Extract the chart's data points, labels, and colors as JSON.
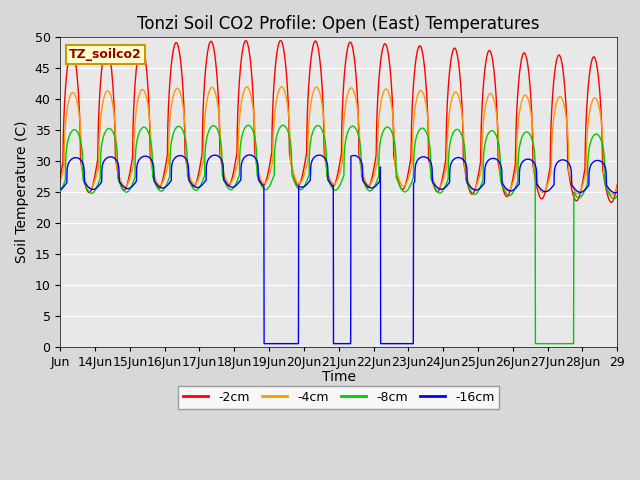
{
  "title": "Tonzi Soil CO2 Profile: Open (East) Temperatures",
  "ylabel": "Soil Temperature (C)",
  "xlabel": "Time",
  "ylim": [
    0,
    50
  ],
  "yticks": [
    0,
    5,
    10,
    15,
    20,
    25,
    30,
    35,
    40,
    45,
    50
  ],
  "legend_label": "TZ_soilco2",
  "series": [
    {
      "label": "-2cm",
      "color": "#ff0000"
    },
    {
      "label": "-4cm",
      "color": "#ff9900"
    },
    {
      "label": "-8cm",
      "color": "#00cc00"
    },
    {
      "label": "-16cm",
      "color": "#0000ff"
    }
  ],
  "bg_color": "#e8e8e8",
  "grid_color": "#ffffff",
  "title_fontsize": 12,
  "axis_fontsize": 10,
  "tick_fontsize": 9,
  "n_days": 16,
  "start_day": 13,
  "fig_width": 6.4,
  "fig_height": 4.8,
  "fig_dpi": 100
}
